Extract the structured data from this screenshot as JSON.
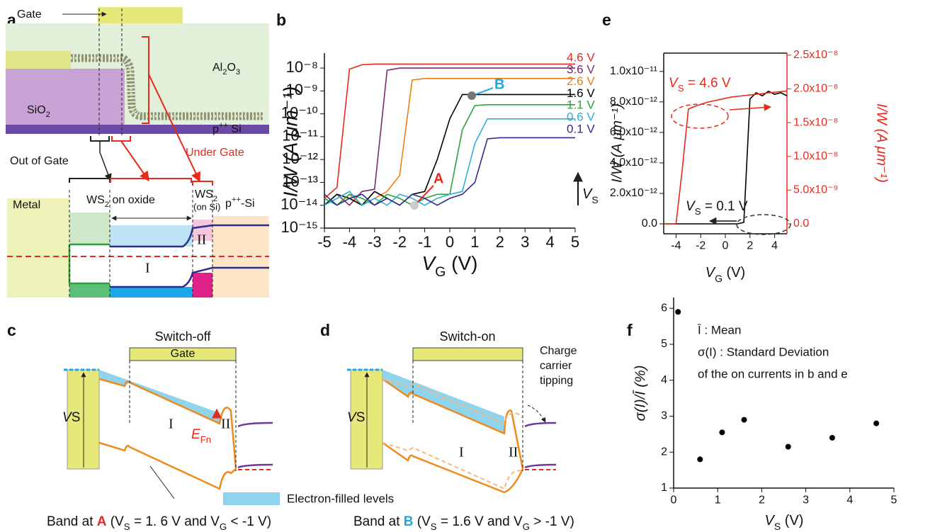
{
  "panel_labels": [
    "a",
    "b",
    "c",
    "d",
    "e",
    "f"
  ],
  "panel_a": {
    "gate": "Gate",
    "al2o3": [
      "Al",
      "2",
      "O",
      "3"
    ],
    "sio2": [
      "SiO",
      "2"
    ],
    "psi": [
      "p",
      "++",
      " Si"
    ],
    "out_of_gate": "Out of Gate",
    "under_gate": "Under Gate",
    "metal": "Metal",
    "ws2_oxide": [
      "WS",
      "2",
      " on oxide"
    ],
    "ws2_si": [
      "WS",
      "2"
    ],
    "on_si": "(on Si)",
    "psi2": [
      "p",
      "++",
      "-Si"
    ],
    "region1": "I",
    "region2": "II"
  },
  "panel_c": {
    "title": "Switch-off",
    "gate": "Gate",
    "vs": [
      "V",
      "S"
    ],
    "region1": "I",
    "region2": "II",
    "efn": [
      "E",
      "Fn"
    ],
    "caption": [
      "Band at ",
      "A",
      " (V",
      "S",
      " = 1. 6 V and V",
      "G",
      " < -1 V)"
    ]
  },
  "panel_d": {
    "title": "Switch-on",
    "vs": [
      "V",
      "S"
    ],
    "region1": "I",
    "region2": "II",
    "note": [
      "Charge",
      "carrier",
      "tipping"
    ],
    "caption": [
      "Band at ",
      "B",
      " (V",
      "S",
      " = 1.6 V and V",
      "G",
      " > -1 V)"
    ]
  },
  "legend": "Electron-filled levels",
  "chart_data": [
    {
      "type": "line",
      "log_y": true,
      "x": [
        -5,
        -4.5,
        -4,
        -3.5,
        -3,
        -2.5,
        -2,
        -1.5,
        -1,
        -0.5,
        0,
        0.5,
        1,
        1.5,
        2,
        2.5,
        3,
        3.5,
        4,
        4.5,
        5
      ],
      "xlim": [
        -5,
        5
      ],
      "xticks": [
        -5,
        -4,
        -3,
        -2,
        -1,
        0,
        1,
        2,
        3,
        4,
        5
      ],
      "ylim": [
        1e-15,
        4.5e-08
      ],
      "yticks": [
        {
          "value": 1e-15,
          "label": "10⁻¹⁵"
        },
        {
          "value": 1e-14,
          "label": "10⁻¹⁴"
        },
        {
          "value": 1e-13,
          "label": "10⁻¹³"
        },
        {
          "value": 1e-12,
          "label": "10⁻¹²"
        },
        {
          "value": 1e-11,
          "label": "10⁻¹¹"
        },
        {
          "value": 1e-10,
          "label": "10⁻¹⁰"
        },
        {
          "value": 1e-09,
          "label": "10⁻⁹"
        },
        {
          "value": 1e-08,
          "label": "10⁻⁸"
        }
      ],
      "xlabel": [
        "V",
        "G",
        " (V)"
      ],
      "ylabel": "I/W (A μm⁻¹)",
      "annotations": [
        "A",
        "B"
      ],
      "arrow_label": [
        "V",
        "S"
      ],
      "series": [
        {
          "name": "4.6 V",
          "color": "#e8291c",
          "values": [
            2e-14,
            6e-14,
            9e-09,
            1.4e-08,
            1.5e-08,
            1.5e-08,
            1.5e-08,
            1.5e-08,
            1.5e-08,
            1.5e-08,
            1.5e-08,
            1.5e-08,
            1.5e-08,
            1.5e-08,
            1.5e-08,
            1.5e-08,
            1.5e-08,
            1.5e-08,
            1.5e-08,
            1.5e-08,
            1.5e-08
          ]
        },
        {
          "name": "3.6 V",
          "color": "#7b2a6e",
          "values": [
            1e-14,
            3e-14,
            1e-14,
            4e-14,
            5e-14,
            8e-09,
            1e-08,
            1e-08,
            1e-08,
            1e-08,
            1e-08,
            1e-08,
            1e-08,
            1e-08,
            1e-08,
            1e-08,
            1e-08,
            1e-08,
            1e-08,
            1e-08,
            1e-08
          ]
        },
        {
          "name": "2.6 V",
          "color": "#f07f12",
          "values": [
            2e-14,
            1e-14,
            3e-14,
            1e-14,
            2e-14,
            4e-14,
            2e-13,
            3e-09,
            3.5e-09,
            3.5e-09,
            3.5e-09,
            3.5e-09,
            3.5e-09,
            3.5e-09,
            3.5e-09,
            3.5e-09,
            3.5e-09,
            3.5e-09,
            3.5e-09,
            3.5e-09,
            3.5e-09
          ]
        },
        {
          "name": "1.6 V",
          "color": "#000000",
          "values": [
            1e-14,
            3e-14,
            2e-14,
            1e-14,
            4e-14,
            2e-14,
            1e-14,
            3e-14,
            4e-14,
            1e-12,
            6e-11,
            7e-10,
            7e-10,
            7e-10,
            7e-10,
            7e-10,
            7e-10,
            7e-10,
            7e-10,
            7e-10,
            7e-10
          ]
        },
        {
          "name": "1.1 V",
          "color": "#2aa33a",
          "values": [
            2e-14,
            1e-14,
            3e-14,
            2e-14,
            1e-14,
            3e-14,
            2e-14,
            1e-14,
            2e-14,
            3e-14,
            3e-14,
            2e-11,
            2.3e-10,
            2.5e-10,
            2.5e-10,
            2.5e-10,
            2.5e-10,
            2.5e-10,
            2.5e-10,
            2.5e-10,
            2.5e-10
          ]
        },
        {
          "name": "0.6 V",
          "color": "#2bb0d8",
          "values": [
            1e-14,
            2e-14,
            4e-14,
            1e-14,
            2e-14,
            1e-14,
            3e-14,
            2e-14,
            1e-14,
            2e-14,
            3e-14,
            4e-14,
            5e-12,
            6e-11,
            6e-11,
            6e-11,
            6e-11,
            6e-11,
            6e-11,
            6e-11,
            6e-11
          ]
        },
        {
          "name": "0.1 V",
          "color": "#2e2d8f",
          "values": [
            3e-14,
            1e-14,
            2e-14,
            3e-14,
            1e-14,
            2e-14,
            1e-14,
            3e-14,
            2e-14,
            1e-14,
            2e-14,
            3e-14,
            1e-13,
            8e-12,
            9e-12,
            9e-12,
            9e-12,
            9e-12,
            9e-12,
            9e-12,
            9e-12
          ]
        }
      ]
    },
    {
      "type": "line",
      "frame": true,
      "x": [
        -5,
        -4.5,
        -4,
        -3.5,
        -3,
        -2.5,
        -2,
        -1.5,
        -1,
        -0.5,
        0,
        0.5,
        1,
        1.5,
        2,
        2.5,
        3,
        3.5,
        4,
        4.5,
        5
      ],
      "xlim": [
        -5,
        5
      ],
      "xticks": [
        -4,
        -2,
        0,
        2,
        4
      ],
      "ylim": [
        -6.5e-13,
        1.12e-11
      ],
      "yticks": [
        {
          "value": 0,
          "label": "0.0"
        },
        {
          "value": 2e-12,
          "label": "2.0x10⁻¹²"
        },
        {
          "value": 4e-12,
          "label": "4.0x10⁻¹²"
        },
        {
          "value": 6e-12,
          "label": "6.0x10⁻¹²"
        },
        {
          "value": 8e-12,
          "label": "8.0x10⁻¹²"
        },
        {
          "value": 1e-11,
          "label": "1.0x10⁻¹¹"
        }
      ],
      "y2lim": [
        -1.47e-09,
        2.53e-08
      ],
      "y2ticks": [
        {
          "value": 0,
          "label": "0.0"
        },
        {
          "value": 5e-09,
          "label": "5.0x10⁻⁹"
        },
        {
          "value": 1e-08,
          "label": "1.0x10⁻⁸"
        },
        {
          "value": 1.5e-08,
          "label": "1.5x10⁻⁸"
        },
        {
          "value": 2e-08,
          "label": "2.0x10⁻⁸"
        },
        {
          "value": 2.5e-08,
          "label": "2.5x10⁻⁸"
        }
      ],
      "y2_color": "#e8291c",
      "xlabel": [
        "V",
        "G",
        " (V)"
      ],
      "ylabel": "I/W (A μm⁻¹)",
      "y2label": "I/W (A μm⁻¹)",
      "series": [
        {
          "name": [
            "V",
            "S",
            " = 0.1 V"
          ],
          "color": "#000000",
          "values": [
            0,
            0,
            0,
            0,
            0,
            0,
            0,
            0,
            0,
            0,
            0,
            0,
            0,
            1e-13,
            8.2e-12,
            8.6e-12,
            8.4e-12,
            8.7e-12,
            8.5e-12,
            8.6e-12,
            8.4e-12
          ]
        },
        {
          "name": [
            "V",
            "S",
            " = 4.6 V"
          ],
          "color": "#e8291c",
          "axis": "y2",
          "values": [
            0,
            0,
            0,
            8e-09,
            1.7e-08,
            1.74e-08,
            1.77e-08,
            1.8e-08,
            1.82e-08,
            1.84e-08,
            1.86e-08,
            1.88e-08,
            1.89e-08,
            1.9e-08,
            1.91e-08,
            1.92e-08,
            1.93e-08,
            1.94e-08,
            1.95e-08,
            1.96e-08,
            1.97e-08
          ]
        }
      ]
    },
    {
      "type": "scatter",
      "x": [
        0.1,
        0.6,
        1.1,
        1.6,
        2.6,
        3.6,
        4.6
      ],
      "values": [
        5.9,
        1.8,
        2.55,
        2.9,
        2.15,
        2.4,
        2.8
      ],
      "color": "#000000",
      "xlim": [
        0,
        5
      ],
      "xticks": [
        0,
        1,
        2,
        3,
        4,
        5
      ],
      "ylim": [
        1,
        6.3
      ],
      "yticks": [
        1,
        2,
        3,
        4,
        5,
        6
      ],
      "xlabel": [
        "V",
        "S",
        " (V)"
      ],
      "ylabel": "σ(I)/Ī (%)",
      "notes": [
        "Ī : Mean",
        "σ(I) : Standard Deviation",
        "of the on currents in b and e"
      ]
    }
  ]
}
